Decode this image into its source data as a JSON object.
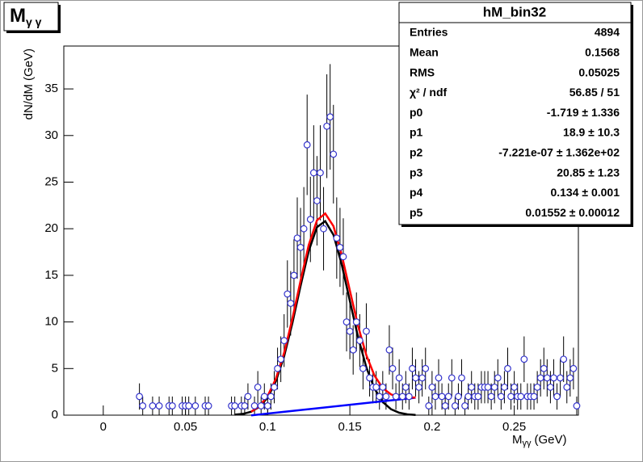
{
  "chart_data": {
    "type": "scatter",
    "title": {
      "main": "M",
      "sub": "γ γ"
    },
    "x_label": {
      "main": "M",
      "sub": "γγ",
      "unit": "(GeV)"
    },
    "y_label": "dN/dM (GeV)",
    "xlim": [
      -0.024,
      0.289
    ],
    "ylim": [
      0,
      39.6
    ],
    "xticks": [
      0,
      0.05,
      0.1,
      0.15,
      0.2,
      0.25
    ],
    "yticks": [
      0,
      5,
      10,
      15,
      20,
      25,
      30,
      35
    ],
    "points": {
      "color": "#3333cc",
      "x": [
        0.022,
        0.024,
        0.03,
        0.034,
        0.04,
        0.042,
        0.048,
        0.05,
        0.052,
        0.056,
        0.062,
        0.064,
        0.078,
        0.08,
        0.084,
        0.086,
        0.088,
        0.092,
        0.094,
        0.096,
        0.098,
        0.1,
        0.102,
        0.104,
        0.106,
        0.108,
        0.11,
        0.112,
        0.114,
        0.116,
        0.118,
        0.12,
        0.122,
        0.124,
        0.126,
        0.128,
        0.13,
        0.132,
        0.134,
        0.136,
        0.138,
        0.14,
        0.142,
        0.144,
        0.146,
        0.148,
        0.15,
        0.152,
        0.154,
        0.156,
        0.158,
        0.16,
        0.162,
        0.164,
        0.166,
        0.168,
        0.17,
        0.172,
        0.174,
        0.176,
        0.178,
        0.18,
        0.182,
        0.184,
        0.186,
        0.188,
        0.19,
        0.192,
        0.194,
        0.196,
        0.198,
        0.2,
        0.202,
        0.204,
        0.206,
        0.208,
        0.21,
        0.212,
        0.214,
        0.216,
        0.218,
        0.22,
        0.222,
        0.224,
        0.226,
        0.228,
        0.23,
        0.232,
        0.234,
        0.236,
        0.238,
        0.24,
        0.242,
        0.244,
        0.246,
        0.248,
        0.25,
        0.252,
        0.254,
        0.256,
        0.258,
        0.26,
        0.262,
        0.264,
        0.266,
        0.268,
        0.27,
        0.272,
        0.274,
        0.276,
        0.278,
        0.28,
        0.282,
        0.284,
        0.286,
        0.288
      ],
      "values": [
        2,
        1,
        1,
        1,
        1,
        1,
        1,
        1,
        1,
        1,
        1,
        1,
        1,
        1,
        1,
        1,
        2,
        1,
        3,
        1,
        2,
        1,
        2,
        3,
        5,
        6,
        8,
        13,
        12,
        15,
        19,
        18,
        20,
        29,
        21,
        26,
        23,
        26,
        20,
        31,
        32,
        28,
        19,
        18,
        17,
        10,
        9,
        7,
        10,
        8,
        5,
        9,
        4,
        3,
        3,
        2,
        3,
        2,
        7,
        5,
        2,
        4,
        2,
        3,
        2,
        5,
        4,
        3,
        4,
        5,
        1,
        3,
        2,
        4,
        2,
        1,
        2,
        4,
        1,
        2,
        4,
        1,
        2,
        3,
        2,
        2,
        3,
        3,
        3,
        2,
        3,
        4,
        2,
        3,
        5,
        2,
        3,
        2,
        2,
        6,
        2,
        2,
        2,
        3,
        4,
        5,
        4,
        3,
        4,
        2,
        4,
        6,
        3,
        4,
        5,
        1
      ],
      "errors": [
        1.41,
        1,
        1,
        1,
        1,
        1,
        1,
        1,
        1,
        1,
        1,
        1,
        1,
        1,
        1,
        1,
        1.41,
        1,
        1.73,
        1,
        1.41,
        1,
        1.41,
        1.73,
        2.24,
        2.45,
        2.83,
        3.61,
        3.46,
        3.87,
        4.36,
        4.24,
        4.47,
        5.39,
        4.58,
        5.1,
        4.8,
        5.1,
        4.47,
        5.57,
        5.66,
        5.29,
        4.36,
        4.24,
        4.12,
        3.16,
        3,
        2.65,
        3.16,
        2.83,
        2.24,
        3,
        2,
        1.73,
        1.73,
        1.41,
        1.73,
        1.41,
        2.65,
        2.24,
        1.41,
        2,
        1.41,
        1.73,
        1.41,
        2.24,
        2,
        1.73,
        2,
        2.24,
        1,
        1.73,
        1.41,
        2,
        1.41,
        1,
        1.41,
        2,
        1,
        1.41,
        2,
        1,
        1.41,
        1.73,
        1.41,
        1.41,
        1.73,
        1.73,
        1.73,
        1.41,
        1.73,
        2,
        1.41,
        1.73,
        2.24,
        1.41,
        1.73,
        1.41,
        1.41,
        2.45,
        1.41,
        1.41,
        1.41,
        1.73,
        2,
        2.24,
        2,
        1.73,
        2,
        1.41,
        2,
        2.45,
        1.73,
        2,
        2.24,
        1
      ]
    },
    "curves": [
      {
        "color": "#000000",
        "x": [
          0.08,
          0.085,
          0.09,
          0.095,
          0.1,
          0.105,
          0.11,
          0.115,
          0.12,
          0.125,
          0.13,
          0.135,
          0.14,
          0.145,
          0.15,
          0.155,
          0.16,
          0.165,
          0.17,
          0.175,
          0.18,
          0.185,
          0.19
        ],
        "values": [
          0.05,
          0.14,
          0.375,
          0.89,
          1.89,
          3.64,
          6.31,
          9.86,
          13.88,
          17.62,
          20.17,
          20.81,
          19.35,
          16.22,
          12.25,
          8.35,
          5.13,
          2.84,
          1.41,
          0.64,
          0.26,
          0.09,
          0.03
        ]
      },
      {
        "color": "#0000ff",
        "x": [
          0.09,
          0.19
        ],
        "values": [
          -0.018,
          1.872
        ]
      },
      {
        "color": "#ff0000",
        "x": [
          0.09,
          0.095,
          0.1,
          0.105,
          0.11,
          0.115,
          0.12,
          0.125,
          0.13,
          0.135,
          0.14,
          0.145,
          0.15,
          0.155,
          0.16,
          0.165,
          0.17,
          0.175,
          0.18,
          0.185,
          0.19
        ],
        "values": [
          0.36,
          0.97,
          2.06,
          3.91,
          6.67,
          10.32,
          14.43,
          18.26,
          20.91,
          21.64,
          20.28,
          17.24,
          13.37,
          9.56,
          6.44,
          4.24,
          2.9,
          2.23,
          1.94,
          1.87,
          1.9
        ]
      }
    ],
    "stats": {
      "title": "hM_bin32",
      "rows": [
        [
          "Entries",
          "4894"
        ],
        [
          "Mean",
          "0.1568"
        ],
        [
          "RMS",
          "0.05025"
        ],
        [
          "χ² / ndf",
          "56.85 / 51"
        ],
        [
          "p0",
          "-1.719 ± 1.336"
        ],
        [
          "p1",
          "18.9 ± 10.3"
        ],
        [
          "p2",
          "-7.221e-07 ± 1.362e+02"
        ],
        [
          "p3",
          "20.85 ± 1.23"
        ],
        [
          "p4",
          "0.134 ± 0.001"
        ],
        [
          "p5",
          "0.01552 ± 0.00012"
        ]
      ]
    }
  }
}
